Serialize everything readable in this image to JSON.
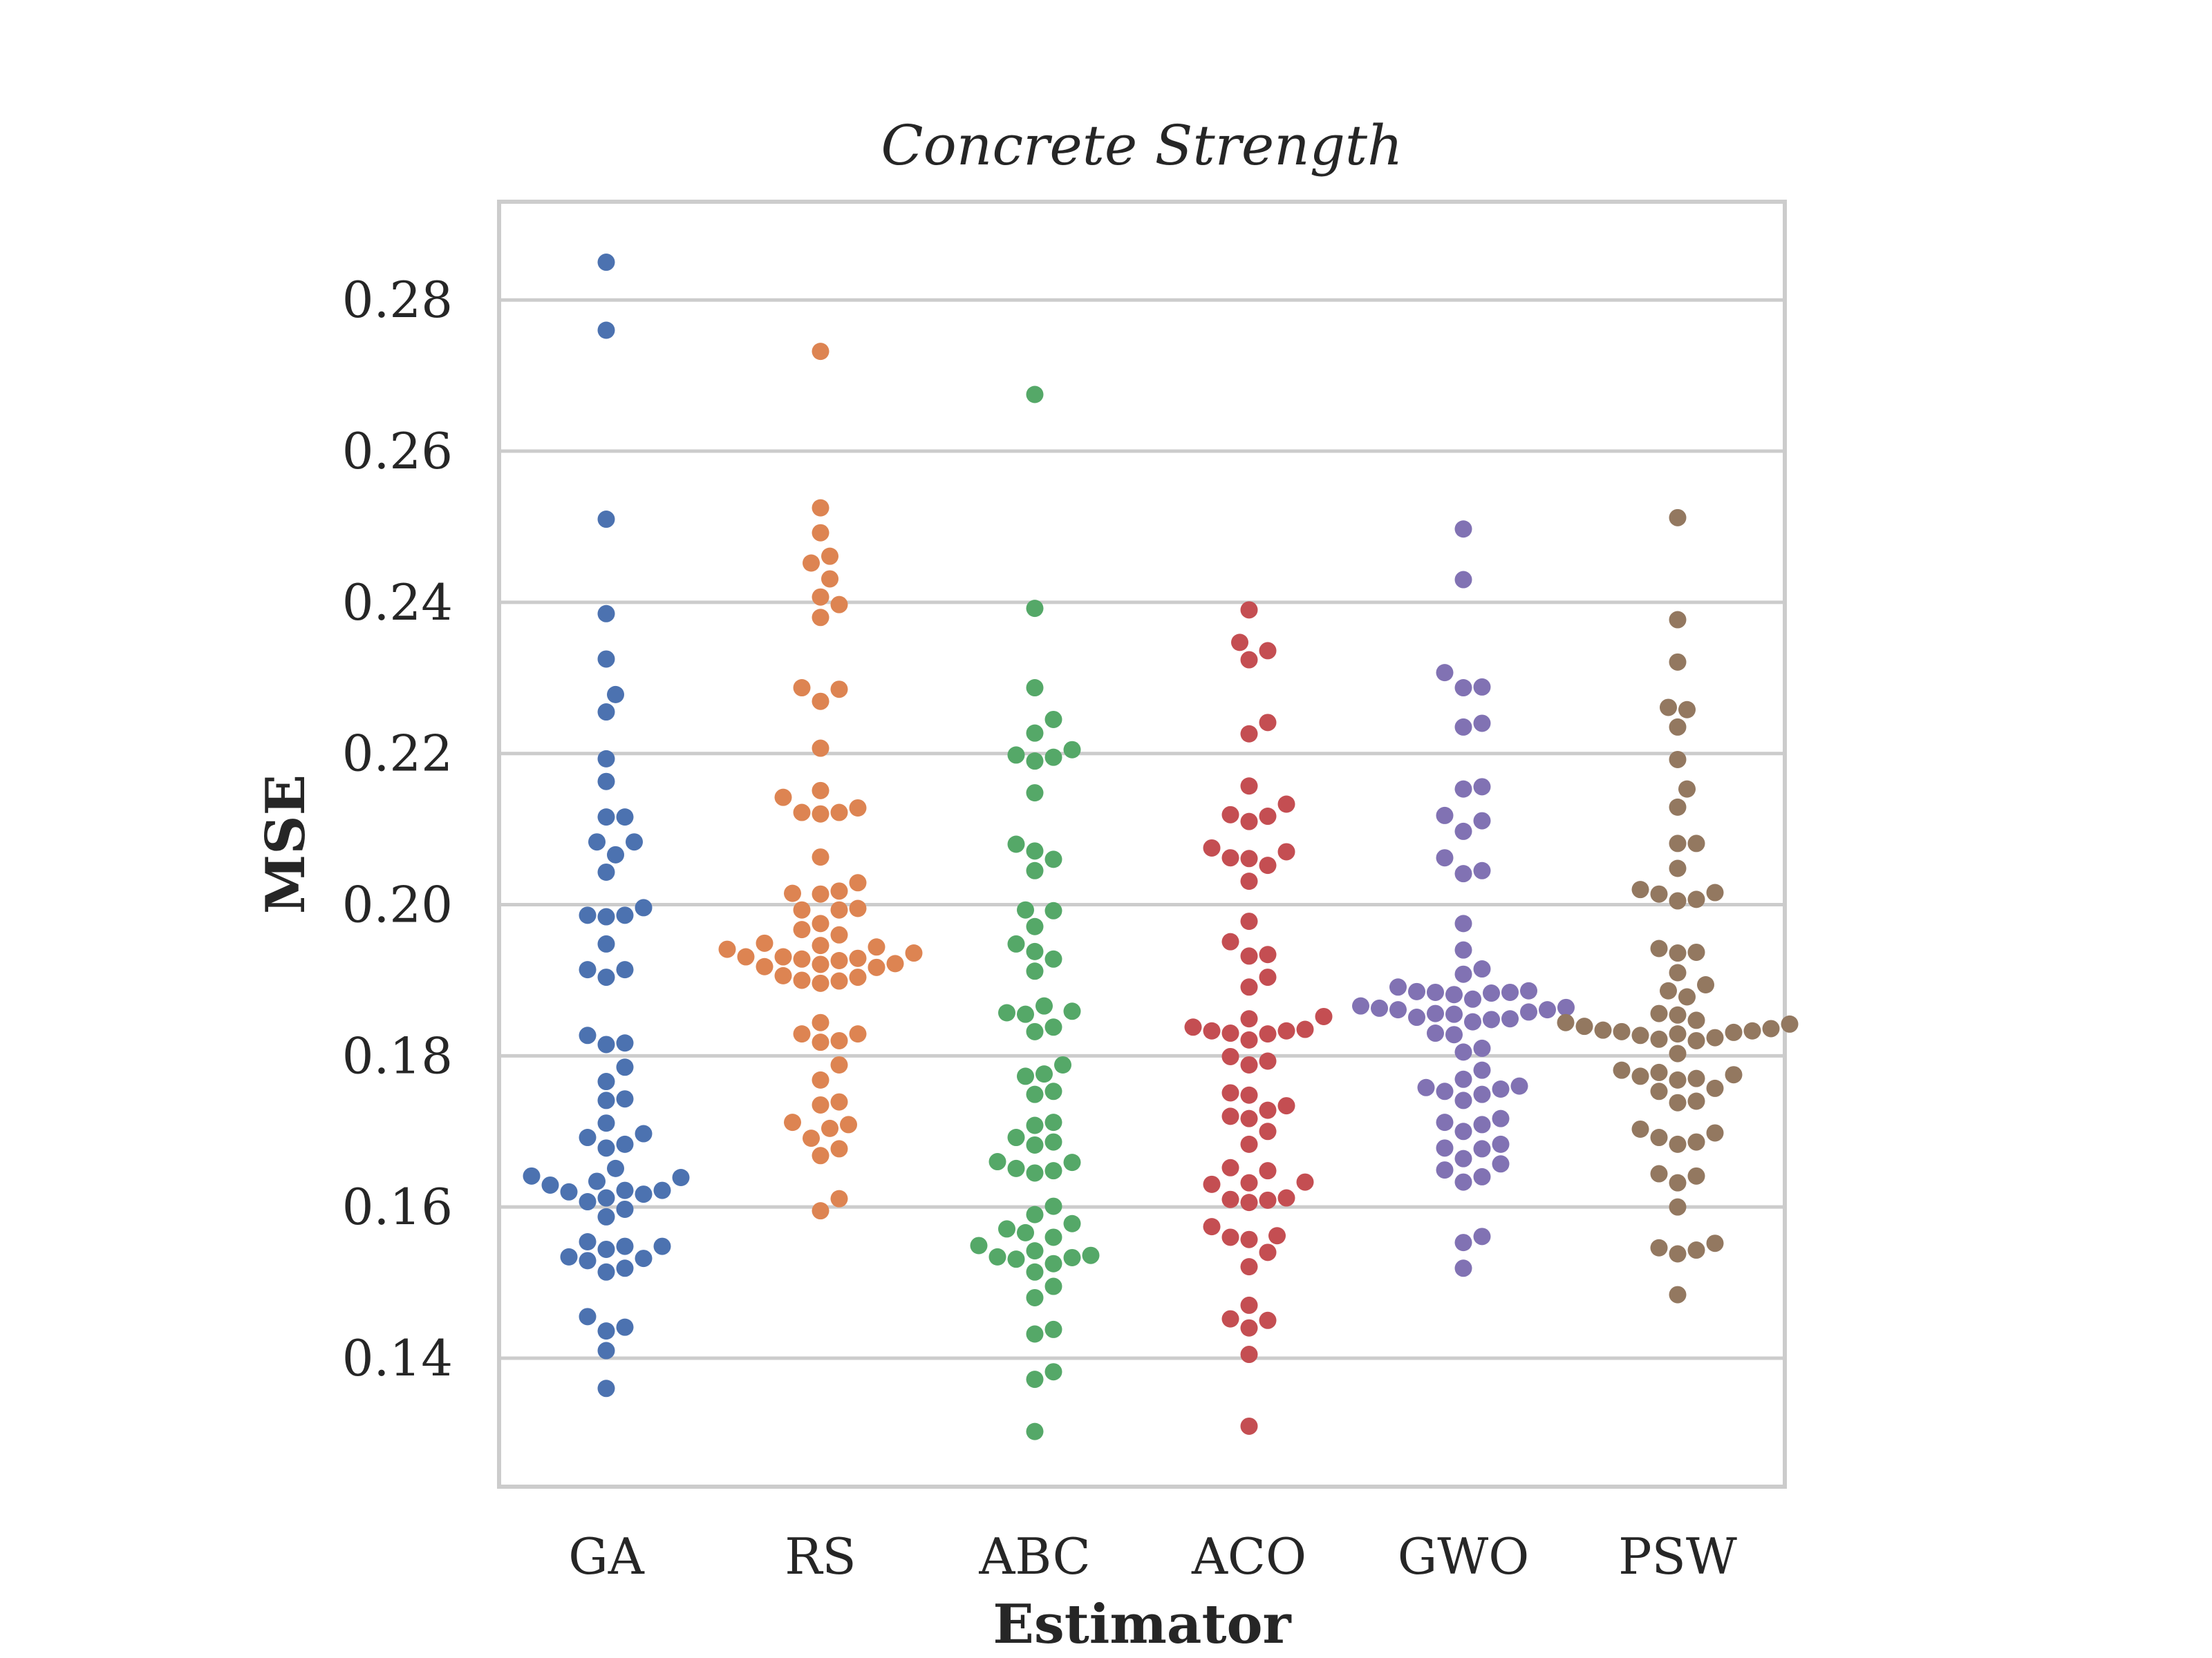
{
  "chart_data": {
    "type": "scatter",
    "title": "Concrete Strength",
    "xlabel": "Estimator",
    "ylabel": "MSE",
    "categories": [
      "GA",
      "RS",
      "ABC",
      "ACO",
      "GWO",
      "PSW"
    ],
    "ylim": [
      0.123,
      0.293
    ],
    "yticks": [
      "0.14",
      "0.16",
      "0.18",
      "0.20",
      "0.22",
      "0.24",
      "0.26",
      "0.28"
    ],
    "grid": "horizontal",
    "colors": [
      "#4c72b0",
      "#dd8452",
      "#55a868",
      "#c44e52",
      "#8172b3",
      "#937860"
    ],
    "series": [
      {
        "values": [
          0.285,
          0.276,
          0.251,
          0.2385,
          0.2325,
          0.2278,
          0.2255,
          0.2193,
          0.2163,
          0.2116,
          0.2116,
          0.2083,
          0.2083,
          0.2066,
          0.2043,
          0.1996,
          0.1986,
          0.1986,
          0.1984,
          0.1948,
          0.1914,
          0.1914,
          0.1904,
          0.1827,
          0.1817,
          0.1815,
          0.1785,
          0.1766,
          0.1743,
          0.1741,
          0.1711,
          0.1697,
          0.1692,
          0.1683,
          0.1678,
          0.1651,
          0.1641,
          0.1639,
          0.1634,
          0.1629,
          0.1622,
          0.1622,
          0.162,
          0.1617,
          0.1612,
          0.1607,
          0.1597,
          0.1587,
          0.1554,
          0.1548,
          0.1548,
          0.1544,
          0.1534,
          0.1532,
          0.1529,
          0.1519,
          0.1514,
          0.1455,
          0.1441,
          0.1436,
          0.141,
          0.136
        ]
      },
      {
        "values": [
          0.2732,
          0.2525,
          0.2492,
          0.2461,
          0.2452,
          0.2431,
          0.2407,
          0.2397,
          0.238,
          0.2287,
          0.2285,
          0.2269,
          0.2207,
          0.2151,
          0.2142,
          0.2128,
          0.2122,
          0.2122,
          0.212,
          0.2063,
          0.2029,
          0.2018,
          0.2015,
          0.2014,
          0.1995,
          0.1993,
          0.1993,
          0.1975,
          0.1967,
          0.196,
          0.1949,
          0.1946,
          0.1944,
          0.1941,
          0.1936,
          0.1931,
          0.1931,
          0.1929,
          0.1928,
          0.1926,
          0.1922,
          0.1921,
          0.1918,
          0.1917,
          0.1906,
          0.1904,
          0.19,
          0.1899,
          0.1896,
          0.1844,
          0.1829,
          0.1829,
          0.182,
          0.1818,
          0.1788,
          0.1768,
          0.1739,
          0.1735,
          0.1712,
          0.1709,
          0.1704,
          0.1691,
          0.1677,
          0.1668,
          0.1611,
          0.1595
        ]
      },
      {
        "values": [
          0.2675,
          0.2392,
          0.2287,
          0.2245,
          0.2227,
          0.2205,
          0.2198,
          0.2195,
          0.219,
          0.2148,
          0.208,
          0.2071,
          0.206,
          0.2045,
          0.1993,
          0.1992,
          0.1971,
          0.1948,
          0.1938,
          0.1928,
          0.1912,
          0.1866,
          0.1859,
          0.1857,
          0.1855,
          0.1838,
          0.1832,
          0.1788,
          0.1776,
          0.1773,
          0.1753,
          0.1749,
          0.1712,
          0.1708,
          0.1692,
          0.1686,
          0.1682,
          0.166,
          0.1659,
          0.1651,
          0.1648,
          0.1645,
          0.1601,
          0.159,
          0.1578,
          0.1571,
          0.1566,
          0.156,
          0.1549,
          0.1542,
          0.1536,
          0.1534,
          0.1533,
          0.1531,
          0.1525,
          0.1514,
          0.1495,
          0.148,
          0.1438,
          0.1432,
          0.1382,
          0.1372,
          0.1303
        ]
      },
      {
        "values": [
          0.239,
          0.2347,
          0.2336,
          0.2324,
          0.2241,
          0.2226,
          0.2157,
          0.2133,
          0.2119,
          0.2117,
          0.211,
          0.2075,
          0.207,
          0.2062,
          0.2061,
          0.2052,
          0.2031,
          0.1978,
          0.1951,
          0.1934,
          0.1932,
          0.1904,
          0.1891,
          0.1852,
          0.1849,
          0.1838,
          0.1835,
          0.1833,
          0.1833,
          0.183,
          0.1829,
          0.1821,
          0.1799,
          0.1793,
          0.1788,
          0.1751,
          0.1748,
          0.1734,
          0.1728,
          0.172,
          0.1717,
          0.17,
          0.1683,
          0.1652,
          0.1648,
          0.1633,
          0.1632,
          0.163,
          0.1612,
          0.161,
          0.1609,
          0.1606,
          0.1574,
          0.1562,
          0.156,
          0.1557,
          0.154,
          0.1521,
          0.147,
          0.1452,
          0.145,
          0.144,
          0.1405,
          0.131
        ]
      },
      {
        "values": [
          0.2497,
          0.243,
          0.2307,
          0.2288,
          0.2287,
          0.224,
          0.2235,
          0.2156,
          0.2153,
          0.2118,
          0.2111,
          0.2097,
          0.2062,
          0.2045,
          0.2041,
          0.1975,
          0.194,
          0.1915,
          0.1908,
          0.1891,
          0.1886,
          0.1885,
          0.1884,
          0.1884,
          0.1883,
          0.1881,
          0.1875,
          0.1866,
          0.1864,
          0.1863,
          0.1861,
          0.1861,
          0.1858,
          0.1856,
          0.1855,
          0.1851,
          0.1849,
          0.1848,
          0.1845,
          0.183,
          0.1828,
          0.181,
          0.1805,
          0.1781,
          0.1769,
          0.176,
          0.1758,
          0.1756,
          0.1753,
          0.1749,
          0.1741,
          0.1717,
          0.1712,
          0.1709,
          0.17,
          0.1683,
          0.1678,
          0.1677,
          0.1664,
          0.1657,
          0.1649,
          0.164,
          0.1633,
          0.1561,
          0.1553,
          0.1519
        ]
      },
      {
        "values": [
          0.2512,
          0.2377,
          0.2321,
          0.2261,
          0.2258,
          0.2235,
          0.2192,
          0.2153,
          0.2129,
          0.2081,
          0.2081,
          0.2048,
          0.202,
          0.2016,
          0.2014,
          0.2007,
          0.2005,
          0.1942,
          0.1937,
          0.1936,
          0.191,
          0.1894,
          0.1886,
          0.1878,
          0.1856,
          0.1854,
          0.1847,
          0.1844,
          0.1842,
          0.1839,
          0.1836,
          0.1834,
          0.1833,
          0.1832,
          0.1831,
          0.1829,
          0.1827,
          0.1824,
          0.1822,
          0.182,
          0.1803,
          0.1781,
          0.1778,
          0.1775,
          0.1773,
          0.177,
          0.1768,
          0.1757,
          0.1753,
          0.174,
          0.1738,
          0.1703,
          0.1698,
          0.1692,
          0.1686,
          0.1683,
          0.1644,
          0.1641,
          0.1632,
          0.16,
          0.1552,
          0.1546,
          0.1543,
          0.1538,
          0.1484
        ]
      }
    ]
  }
}
